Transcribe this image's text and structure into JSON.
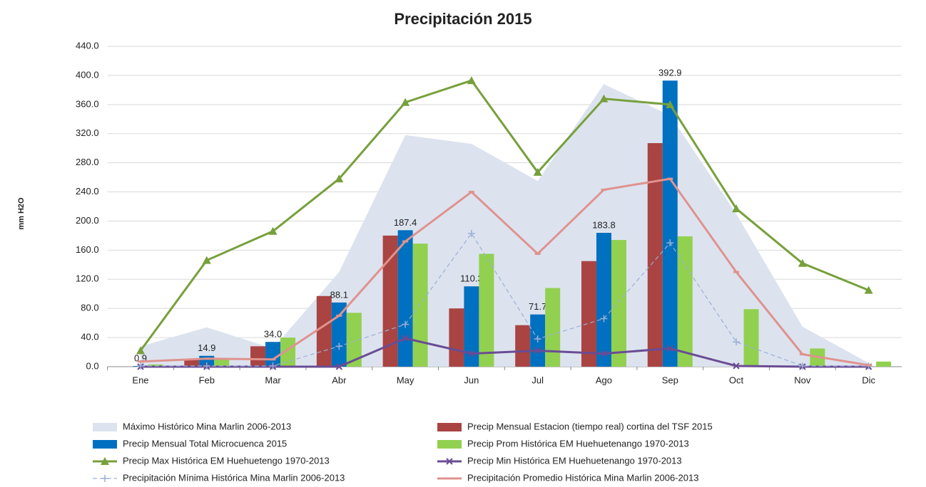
{
  "chart_data": {
    "type": "combo",
    "title": "Precipitación 2015",
    "y_label": "mm H2O",
    "categories": [
      "Ene",
      "Feb",
      "Mar",
      "Abr",
      "May",
      "Jun",
      "Jul",
      "Ago",
      "Sep",
      "Oct",
      "Nov",
      "Dic"
    ],
    "ylim": [
      0,
      440
    ],
    "yticks": [
      {
        "value": 0,
        "label": "0.0"
      },
      {
        "value": 40,
        "label": "40.0"
      },
      {
        "value": 80,
        "label": "80.0"
      },
      {
        "value": 120,
        "label": "120.0"
      },
      {
        "value": 160,
        "label": "160.0"
      },
      {
        "value": 200,
        "label": "200.0"
      },
      {
        "value": 240,
        "label": "240.0"
      },
      {
        "value": 280,
        "label": "280.0"
      },
      {
        "value": 320,
        "label": "320.0"
      },
      {
        "value": 360,
        "label": "360.0"
      },
      {
        "value": 400,
        "label": "400.0"
      },
      {
        "value": 440,
        "label": "440.0"
      }
    ],
    "grid": true,
    "series": [
      {
        "name": "Máximo Histórico Mina Marlin 2006-2013",
        "type": "area",
        "color": "#dce3ef",
        "values": [
          28,
          54,
          25,
          130,
          318,
          306,
          255,
          388,
          345,
          210,
          55,
          5
        ]
      },
      {
        "name": "Precip Mensual Estacion (tiempo real) cortina del TSF 2015",
        "type": "bar",
        "color": "#a94442",
        "values": [
          null,
          10,
          28,
          97,
          180,
          80,
          57,
          145,
          307,
          null,
          null,
          null
        ]
      },
      {
        "name": "Precip Mensual Total Microcuenca 2015",
        "type": "bar",
        "color": "#0070c0",
        "values": [
          0.9,
          14.9,
          34,
          88.1,
          187.4,
          110.3,
          71.7,
          183.8,
          392.9,
          null,
          null,
          null
        ],
        "value_labels": [
          "0.9",
          "14.9",
          "34.0",
          "88.1",
          "187.4",
          "110.3",
          "71.7",
          "183.8",
          "392.9",
          null,
          null,
          null
        ]
      },
      {
        "name": "Precip Prom Histórica EM Huehuetenango 1970-2013",
        "type": "bar",
        "color": "#92d050",
        "values": [
          3,
          10,
          40,
          74,
          169,
          155,
          108,
          174,
          179,
          79,
          25,
          7
        ]
      },
      {
        "name": "Precip Max Histórica EM Huehuetengo 1970-2013",
        "type": "line",
        "marker": "triangle",
        "color": "#77a03c",
        "values": [
          22,
          146,
          186,
          258,
          363,
          393,
          267,
          368,
          360,
          217,
          142,
          105
        ]
      },
      {
        "name": "Precip Min Histórica EM Huehuetenango 1970-2013",
        "type": "line",
        "marker": "x",
        "color": "#6a4c93",
        "values": [
          0,
          0,
          0,
          0,
          39,
          18,
          22,
          18,
          25,
          1,
          0,
          0
        ]
      },
      {
        "name": "Precipitación Mínima Histórica Mina Marlin 2006-2013",
        "type": "line",
        "marker": "plus",
        "dashed": true,
        "color": "#9aaed6",
        "values": [
          1,
          1,
          1,
          28,
          58,
          183,
          38,
          66,
          170,
          34,
          1,
          1
        ]
      },
      {
        "name": "Precipitación Promedio Histórica Mina Marlin 2006-2013",
        "type": "line",
        "marker": "dash",
        "color": "#e0928e",
        "values": [
          7,
          11,
          10,
          70,
          172,
          240,
          155,
          243,
          258,
          130,
          17,
          2
        ]
      }
    ]
  }
}
